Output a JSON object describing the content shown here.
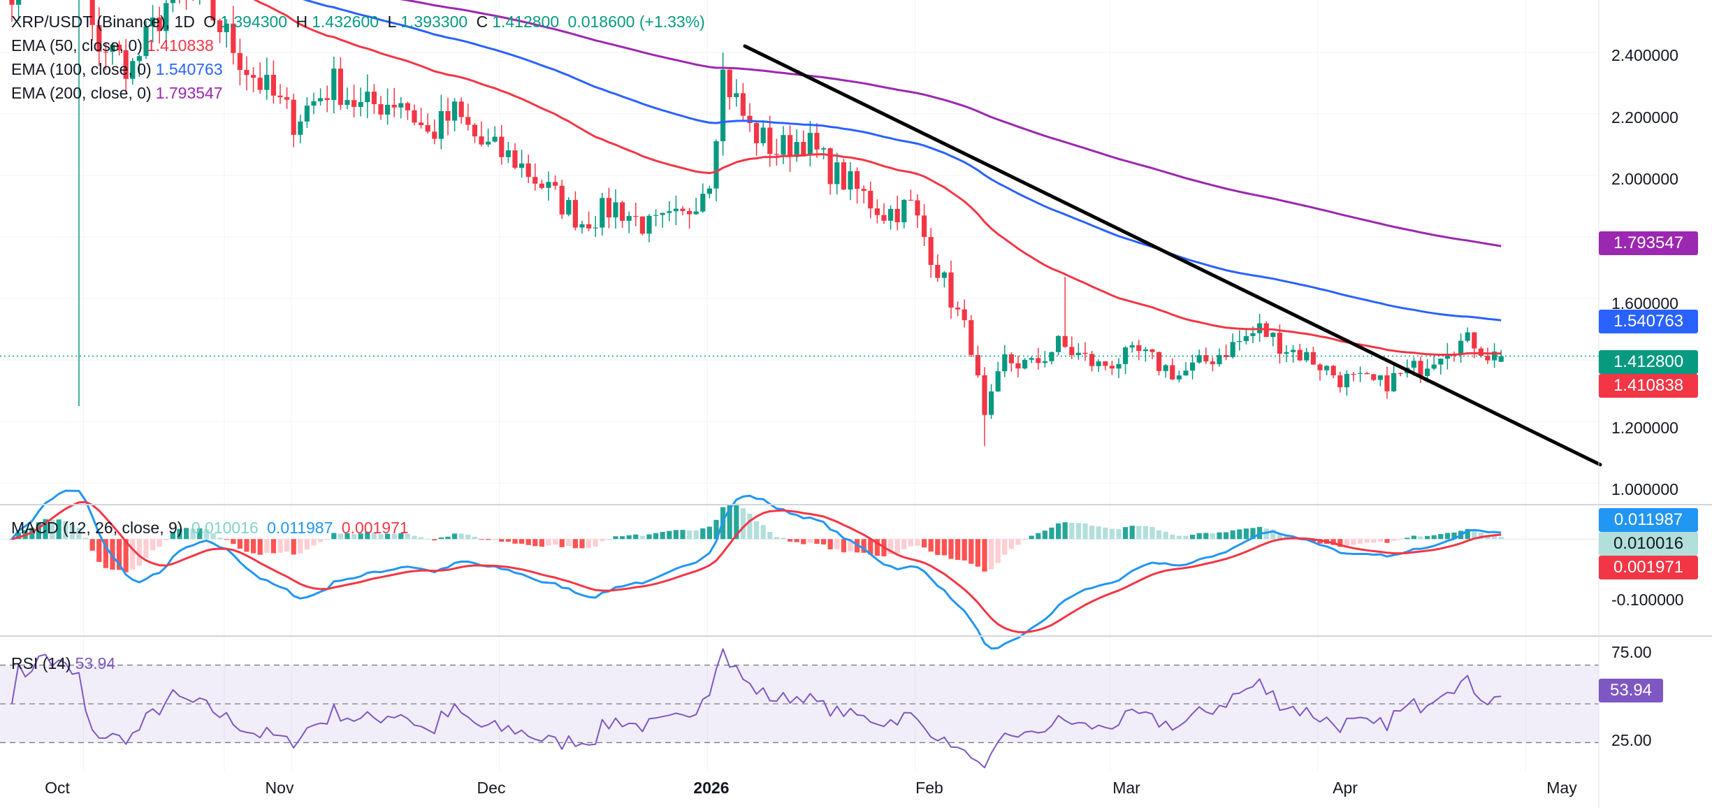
{
  "colors": {
    "up": "#089981",
    "down": "#f23645",
    "ema50": "#f23645",
    "ema100": "#2962ff",
    "ema200": "#9c27b0",
    "macd": "#2196f3",
    "signal": "#f23645",
    "rsi": "#7e57c2",
    "trendline": "#000000",
    "lastPrice": "#089981"
  },
  "legend": {
    "symbol": "XRP/USDT (Binance), 1D",
    "o_label": "O",
    "o": "1.394300",
    "h_label": "H",
    "h": "1.432600",
    "l_label": "L",
    "l": "1.393300",
    "c_label": "C",
    "c": "1.412800",
    "change": "0.018600 (+1.33%)",
    "ema50_label": "EMA (50, close, 0)",
    "ema50": "1.410838",
    "ema100_label": "EMA (100, close, 0)",
    "ema100": "1.540763",
    "ema200_label": "EMA (200, close, 0)",
    "ema200": "1.793547",
    "macd_label": "MACD (12, 26, close, 9)",
    "macd_hist": "0.010016",
    "macd_line": "0.011987",
    "macd_signal": "0.001971",
    "rsi_label": "RSI (14)",
    "rsi": "53.94"
  },
  "price_axis": [
    "2.400000",
    "2.200000",
    "2.000000",
    "1.600000",
    "1.200000",
    "1.000000"
  ],
  "macd_axis": [
    "-0.100000"
  ],
  "rsi_axis": [
    "75.00",
    "25.00"
  ],
  "tags": {
    "ema200": "1.793547",
    "ema100": "1.540763",
    "last": "1.412800",
    "ema50": "1.410838",
    "macd_line": "0.011987",
    "macd_hist": "0.010016",
    "macd_signal": "0.001971",
    "rsi": "53.94"
  },
  "time_axis": [
    "Oct",
    "Nov",
    "Dec",
    "2026",
    "Feb",
    "Mar",
    "Apr",
    "May"
  ],
  "chart_data": {
    "type": "candlestick",
    "title": "XRP/USDT (Binance), 1D",
    "ylim": [
      0.93,
      2.57
    ],
    "series": [
      {
        "name": "price",
        "start": "2025-09-27",
        "end": "2026-04-20",
        "anchors": [
          [
            0,
            2.62
          ],
          [
            5,
            2.85
          ],
          [
            10,
            2.8
          ],
          [
            12,
            2.45
          ],
          [
            18,
            2.35
          ],
          [
            24,
            2.6
          ],
          [
            30,
            2.52
          ],
          [
            35,
            2.35
          ],
          [
            42,
            2.18
          ],
          [
            48,
            2.3
          ],
          [
            52,
            2.22
          ],
          [
            58,
            2.25
          ],
          [
            62,
            2.13
          ],
          [
            66,
            2.2
          ],
          [
            70,
            2.1
          ],
          [
            75,
            2.05
          ],
          [
            80,
            1.95
          ],
          [
            85,
            1.85
          ],
          [
            90,
            1.9
          ],
          [
            95,
            1.83
          ],
          [
            100,
            1.86
          ],
          [
            104,
            2.0
          ],
          [
            106,
            2.33
          ],
          [
            110,
            2.15
          ],
          [
            114,
            2.08
          ],
          [
            118,
            2.12
          ],
          [
            122,
            2.02
          ],
          [
            126,
            1.95
          ],
          [
            130,
            1.88
          ],
          [
            134,
            1.9
          ],
          [
            138,
            1.7
          ],
          [
            141,
            1.55
          ],
          [
            143,
            1.45
          ],
          [
            145,
            1.2
          ],
          [
            148,
            1.4
          ],
          [
            152,
            1.38
          ],
          [
            156,
            1.45
          ],
          [
            162,
            1.38
          ],
          [
            168,
            1.42
          ],
          [
            174,
            1.35
          ],
          [
            180,
            1.42
          ],
          [
            186,
            1.5
          ],
          [
            190,
            1.44
          ],
          [
            194,
            1.4
          ],
          [
            198,
            1.34
          ],
          [
            204,
            1.32
          ],
          [
            210,
            1.38
          ],
          [
            214,
            1.45
          ],
          [
            218,
            1.46
          ],
          [
            220,
            1.42
          ],
          [
            222,
            1.41
          ]
        ]
      },
      {
        "name": "EMA (50, close, 0)",
        "last": 1.410838
      },
      {
        "name": "EMA (100, close, 0)",
        "last": 1.540763
      },
      {
        "name": "EMA (200, close, 0)",
        "last": 1.793547
      }
    ],
    "trendline": {
      "from": [
        "2026-01-06",
        2.42
      ],
      "to": [
        "2026-05-01",
        1.06
      ]
    },
    "macd": {
      "ylim": [
        -0.155,
        0.055
      ],
      "last": {
        "macd": 0.011987,
        "signal": 0.001971,
        "hist": 0.010016
      }
    },
    "rsi": {
      "ylim": [
        15,
        85
      ],
      "bands": [
        70,
        50,
        30
      ],
      "last": 53.94
    }
  }
}
